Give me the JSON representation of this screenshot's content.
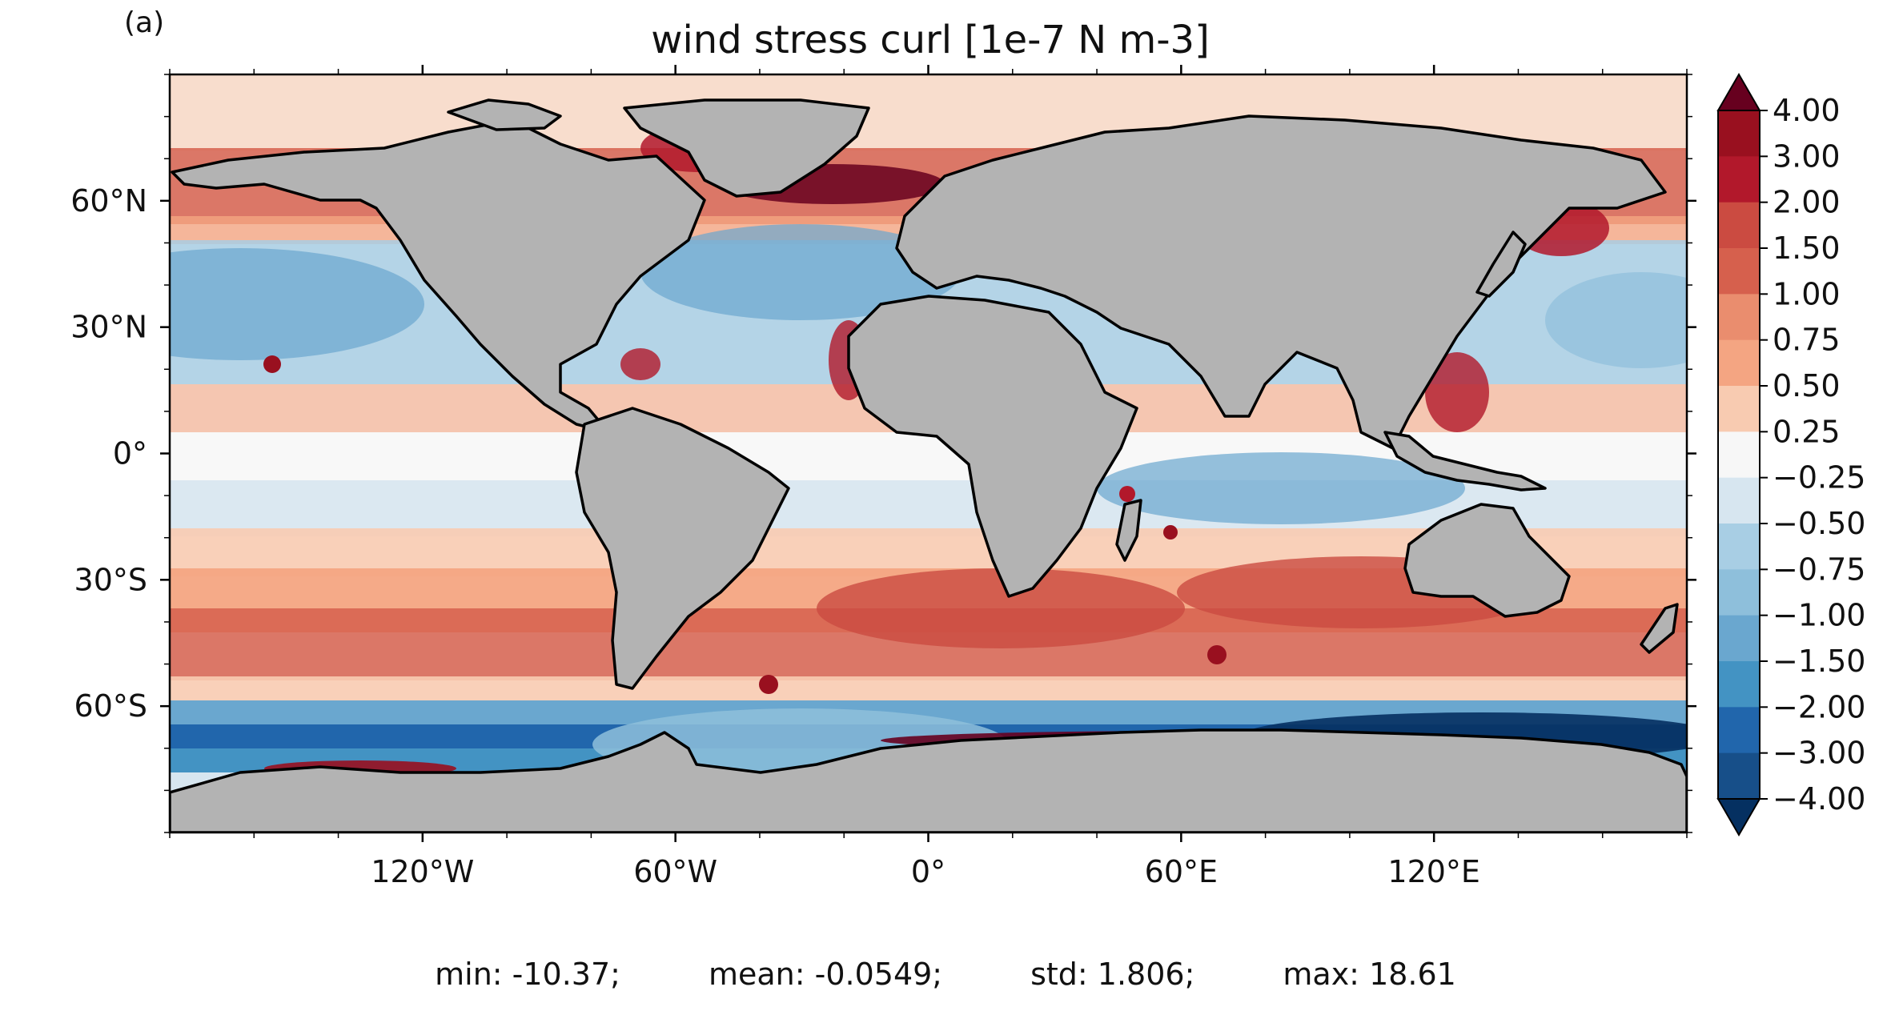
{
  "panel_label": "(a)",
  "title": "wind stress curl [1e-7 N m-3]",
  "stats": {
    "min": "min: -10.37;",
    "mean": "mean: -0.0549;",
    "std": "std: 1.806;",
    "max": "max: 18.61"
  },
  "map": {
    "projection": "PlateCarree",
    "lon_range": [
      -180,
      180
    ],
    "lat_range": [
      -90,
      90
    ],
    "land_color": "#b3b3b3",
    "ocean_neutral_color": "#f7f7f7",
    "coastline_color": "#000000",
    "x_ticks": [
      {
        "lon": -120,
        "label": "120°W"
      },
      {
        "lon": -60,
        "label": "60°W"
      },
      {
        "lon": 0,
        "label": "0°"
      },
      {
        "lon": 60,
        "label": "60°E"
      },
      {
        "lon": 120,
        "label": "120°E"
      }
    ],
    "y_ticks": [
      {
        "lat": 60,
        "label": "60°N"
      },
      {
        "lat": 30,
        "label": "30°N"
      },
      {
        "lat": 0,
        "label": "0°"
      },
      {
        "lat": -30,
        "label": "30°S"
      },
      {
        "lat": -60,
        "label": "60°S"
      }
    ]
  },
  "colorbar": {
    "extend": "both",
    "levels": [
      "4.00",
      "3.00",
      "2.00",
      "1.50",
      "1.00",
      "0.75",
      "0.50",
      "0.25",
      "−0.25",
      "−0.50",
      "−0.75",
      "−1.00",
      "−1.50",
      "−2.00",
      "−3.00",
      "−4.00"
    ],
    "colors": [
      "#67001f",
      "#99101f",
      "#b2182b",
      "#cb4b41",
      "#d6604d",
      "#ea8d6e",
      "#f4a582",
      "#f8cbb1",
      "#f7f7f7",
      "#d7e6f0",
      "#a8cee4",
      "#8ebfdb",
      "#6aa7cf",
      "#4393c3",
      "#2166ac",
      "#174f89",
      "#053061"
    ]
  }
}
